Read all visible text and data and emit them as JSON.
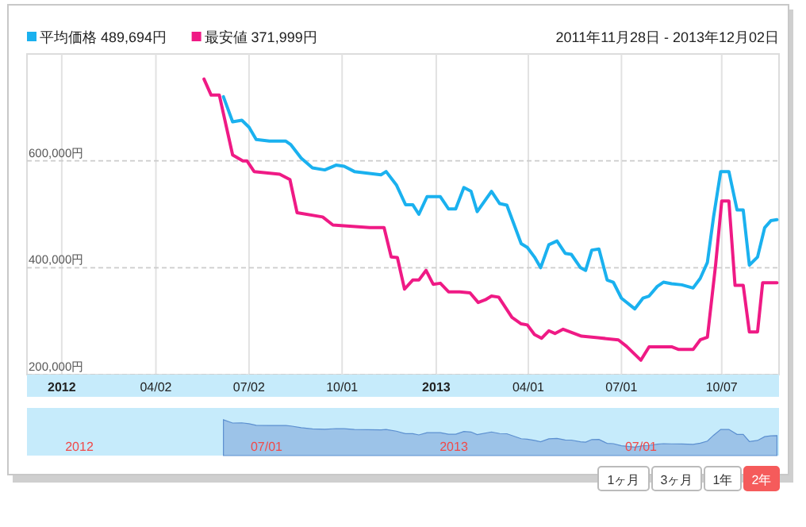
{
  "chart_data": {
    "type": "line",
    "subtitle": "2011年11月28日 - 2013年12月02日",
    "xlim": [
      "2011-11-28",
      "2013-12-02"
    ],
    "xticks": [
      {
        "value": "2012-01-01",
        "label": "2012"
      },
      {
        "value": "2012-04-02",
        "label": "04/02"
      },
      {
        "value": "2012-07-02",
        "label": "07/02"
      },
      {
        "value": "2012-10-01",
        "label": "10/01"
      },
      {
        "value": "2013-01-01",
        "label": "2013"
      },
      {
        "value": "2013-04-01",
        "label": "04/01"
      },
      {
        "value": "2013-07-01",
        "label": "07/01"
      },
      {
        "value": "2013-10-07",
        "label": "10/07"
      }
    ],
    "ylim": [
      200000,
      800000
    ],
    "yticks": [
      {
        "value": 200000,
        "label": "200,000円"
      },
      {
        "value": 400000,
        "label": "400,000円"
      },
      {
        "value": 600000,
        "label": "600,000円"
      }
    ],
    "grid": true,
    "legend": "top left",
    "marker": "none",
    "line_style": "solid",
    "series": [
      {
        "name": "平均価格 489,694円",
        "color": "#1ab1ef",
        "x": [
          "2012-06-07",
          "2012-06-16",
          "2012-06-25",
          "2012-07-02",
          "2012-07-09",
          "2012-07-22",
          "2012-08-07",
          "2012-08-12",
          "2012-08-22",
          "2012-09-02",
          "2012-09-14",
          "2012-09-25",
          "2012-10-03",
          "2012-10-13",
          "2012-10-26",
          "2012-11-08",
          "2012-11-13",
          "2012-11-23",
          "2012-12-02",
          "2012-12-09",
          "2012-12-15",
          "2012-12-23",
          "2013-01-05",
          "2013-01-13",
          "2013-01-20",
          "2013-01-28",
          "2013-02-04",
          "2013-02-10",
          "2013-02-24",
          "2013-03-04",
          "2013-03-11",
          "2013-03-25",
          "2013-03-31",
          "2013-04-07",
          "2013-04-13",
          "2013-04-21",
          "2013-04-29",
          "2013-05-07",
          "2013-05-13",
          "2013-05-22",
          "2013-05-27",
          "2013-06-02",
          "2013-06-09",
          "2013-06-17",
          "2013-06-23",
          "2013-07-01",
          "2013-07-14",
          "2013-07-22",
          "2013-07-28",
          "2013-08-05",
          "2013-08-11",
          "2013-08-19",
          "2013-08-29",
          "2013-09-09",
          "2013-09-16",
          "2013-09-23",
          "2013-09-29",
          "2013-10-06",
          "2013-10-14",
          "2013-10-22",
          "2013-10-28",
          "2013-11-03",
          "2013-11-11",
          "2013-11-18",
          "2013-11-24",
          "2013-11-30"
        ],
        "values": [
          720000,
          673000,
          676000,
          663000,
          640000,
          637000,
          637000,
          630000,
          605000,
          587000,
          583000,
          592000,
          590000,
          580000,
          577000,
          574000,
          580000,
          555000,
          518000,
          518000,
          500000,
          533000,
          533000,
          510000,
          510000,
          550000,
          543000,
          505000,
          543000,
          520000,
          517000,
          445000,
          438000,
          420000,
          400000,
          443000,
          450000,
          427000,
          425000,
          400000,
          395000,
          433000,
          435000,
          377000,
          373000,
          343000,
          323000,
          343000,
          347000,
          365000,
          373000,
          370000,
          368000,
          362000,
          380000,
          410000,
          495000,
          580000,
          580000,
          508000,
          508000,
          405000,
          420000,
          475000,
          488000,
          490000
        ]
      },
      {
        "name": "最安値 371,999円",
        "color": "#ef1a85",
        "x": [
          "2012-05-19",
          "2012-05-26",
          "2012-06-03",
          "2012-06-16",
          "2012-06-26",
          "2012-06-30",
          "2012-07-07",
          "2012-08-01",
          "2012-08-11",
          "2012-08-18",
          "2012-09-12",
          "2012-09-22",
          "2012-10-28",
          "2012-11-11",
          "2012-11-18",
          "2012-11-24",
          "2012-12-01",
          "2012-12-09",
          "2012-12-15",
          "2012-12-22",
          "2012-12-29",
          "2013-01-05",
          "2013-01-13",
          "2013-01-24",
          "2013-02-03",
          "2013-02-11",
          "2013-02-18",
          "2013-02-24",
          "2013-03-03",
          "2013-03-16",
          "2013-03-25",
          "2013-03-31",
          "2013-04-07",
          "2013-04-14",
          "2013-04-21",
          "2013-04-27",
          "2013-05-05",
          "2013-05-23",
          "2013-06-08",
          "2013-06-28",
          "2013-07-06",
          "2013-07-20",
          "2013-07-28",
          "2013-08-19",
          "2013-08-26",
          "2013-09-09",
          "2013-09-16",
          "2013-09-23",
          "2013-10-01",
          "2013-10-07",
          "2013-10-14",
          "2013-10-20",
          "2013-10-28",
          "2013-11-03",
          "2013-11-11",
          "2013-11-16",
          "2013-11-30"
        ],
        "values": [
          753000,
          723000,
          723000,
          611000,
          600000,
          600000,
          580000,
          575000,
          565000,
          503000,
          495000,
          480000,
          475000,
          475000,
          420000,
          419000,
          360000,
          377000,
          377000,
          395000,
          369000,
          371000,
          355000,
          355000,
          353000,
          335000,
          340000,
          347000,
          345000,
          307000,
          295000,
          293000,
          275000,
          268000,
          282000,
          277000,
          285000,
          272000,
          269000,
          265000,
          253000,
          227000,
          252000,
          252000,
          247000,
          247000,
          265000,
          270000,
          405000,
          525000,
          525000,
          367000,
          367000,
          280000,
          280000,
          372000,
          372000
        ]
      }
    ],
    "annotations": [
      "2012",
      "07/01",
      "2013",
      "07/01",
      "1ヶ月",
      "3ヶ月",
      "1年",
      "2年"
    ]
  }
}
